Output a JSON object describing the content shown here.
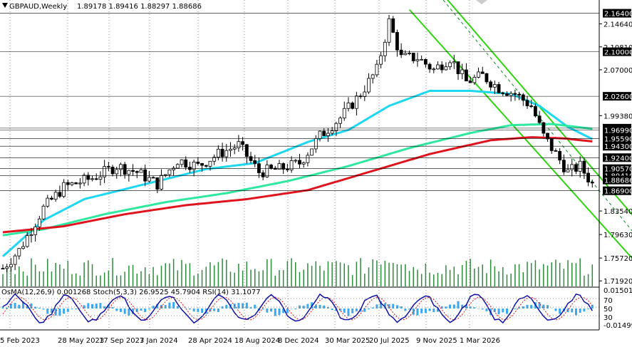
{
  "header": {
    "symbol": "GBPAUD,Weekly",
    "ohlc": "1.89178 1.89416 1.88297 1.88686"
  },
  "indicator_header": "OsMA(12,26,9) 0.001268  Stoch(5,3,3) 26.9525 45.7904  RSI(14) 31.1077",
  "colors": {
    "candle": "#000000",
    "ma_cyan": "#1ed7f0",
    "ma_spring": "#2ee8a0",
    "ma_red": "#e0141e",
    "ma_dark": "#0a8a28",
    "channel": "#2fd60f",
    "volume": "#2e8b3c",
    "osma": "#3aa8ee",
    "stoch_main": "#1010a8",
    "stoch_signal": "#e0141e",
    "level_box": "#000000",
    "current_box": "#000000"
  },
  "chart_data": {
    "type": "candlestick",
    "title": "GBPAUD,Weekly",
    "x_labels": [
      "5 Feb 2023",
      "28 May 2023",
      "17 Sep 2023",
      "7 Jan 2024",
      "28 Apr 2024",
      "18 Aug 2024",
      "8 Dec 2024",
      "30 Mar 2025",
      "20 Jul 2025",
      "9 Nov 2025",
      "1 Mar 2026"
    ],
    "y_ticks": [
      "2.14640",
      "2.10810",
      "2.07000",
      "1.99380",
      "1.83540",
      "1.79630",
      "1.75720",
      "1.71920"
    ],
    "ylim": [
      1.71,
      2.186
    ],
    "price_levels": [
      "2.16400",
      "2.10000",
      "2.02600",
      "1.97300",
      "1.96990",
      "1.95590",
      "1.94300",
      "1.92400",
      "1.90570",
      "1.89410",
      "1.86900"
    ],
    "current_price": "1.88686",
    "indicator_ticks": [
      "0.015018",
      "70",
      "50",
      "30",
      "-0.014990"
    ],
    "anchors": [
      [
        0,
        1.74
      ],
      [
        4,
        1.77
      ],
      [
        10,
        1.84
      ],
      [
        15,
        1.875
      ],
      [
        22,
        1.89
      ],
      [
        28,
        1.91
      ],
      [
        33,
        1.9
      ],
      [
        38,
        1.88
      ],
      [
        43,
        1.92
      ],
      [
        48,
        1.91
      ],
      [
        53,
        1.93
      ],
      [
        58,
        1.945
      ],
      [
        63,
        1.9
      ],
      [
        68,
        1.905
      ],
      [
        73,
        1.915
      ],
      [
        78,
        1.96
      ],
      [
        83,
        1.99
      ],
      [
        88,
        2.03
      ],
      [
        92,
        2.07
      ],
      [
        95,
        2.15
      ],
      [
        98,
        2.09
      ],
      [
        102,
        2.09
      ],
      [
        106,
        2.07
      ],
      [
        110,
        2.09
      ],
      [
        114,
        2.05
      ],
      [
        118,
        2.06
      ],
      [
        122,
        2.04
      ],
      [
        126,
        2.03
      ],
      [
        130,
        2.01
      ],
      [
        133,
        1.96
      ],
      [
        136,
        1.93
      ],
      [
        139,
        1.9
      ],
      [
        142,
        1.91
      ],
      [
        145,
        1.88
      ]
    ],
    "series": [
      {
        "name": "ma_cyan",
        "anchors": [
          [
            0,
            1.76
          ],
          [
            10,
            1.82
          ],
          [
            20,
            1.855
          ],
          [
            35,
            1.88
          ],
          [
            50,
            1.905
          ],
          [
            62,
            1.915
          ],
          [
            75,
            1.95
          ],
          [
            85,
            1.97
          ],
          [
            95,
            2.01
          ],
          [
            105,
            2.035
          ],
          [
            115,
            2.035
          ],
          [
            125,
            2.03
          ],
          [
            132,
            2.01
          ],
          [
            139,
            1.975
          ],
          [
            145,
            1.955
          ]
        ]
      },
      {
        "name": "ma_spring",
        "anchors": [
          [
            0,
            1.795
          ],
          [
            10,
            1.805
          ],
          [
            25,
            1.83
          ],
          [
            40,
            1.85
          ],
          [
            55,
            1.865
          ],
          [
            70,
            1.885
          ],
          [
            85,
            1.91
          ],
          [
            100,
            1.94
          ],
          [
            115,
            1.965
          ],
          [
            125,
            1.978
          ],
          [
            135,
            1.98
          ],
          [
            145,
            1.972
          ]
        ]
      },
      {
        "name": "ma_red",
        "anchors": [
          [
            0,
            1.8
          ],
          [
            15,
            1.81
          ],
          [
            30,
            1.83
          ],
          [
            45,
            1.845
          ],
          [
            60,
            1.855
          ],
          [
            75,
            1.87
          ],
          [
            90,
            1.9
          ],
          [
            105,
            1.93
          ],
          [
            120,
            1.953
          ],
          [
            130,
            1.958
          ],
          [
            138,
            1.956
          ],
          [
            145,
            1.951
          ]
        ]
      }
    ],
    "channel": {
      "upper_a": [
        100,
        2.26
      ],
      "upper_b": [
        170,
        1.71
      ],
      "lower_a": [
        100,
        2.17
      ],
      "lower_b": [
        161,
        1.71
      ],
      "mid_a": [
        103,
        2.23
      ],
      "mid_b": [
        166,
        1.71
      ]
    }
  }
}
